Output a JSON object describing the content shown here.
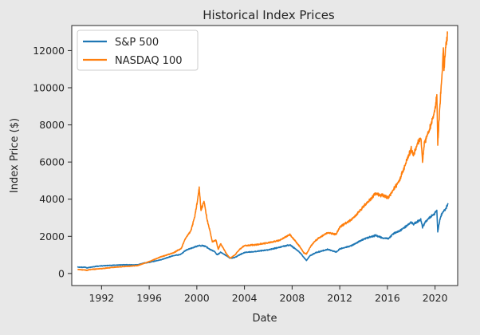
{
  "chart_data": {
    "type": "line",
    "title": "Historical Index Prices",
    "xlabel": "Date",
    "ylabel": "Index Price ($)",
    "x_ticks": [
      "1992",
      "1996",
      "2000",
      "2004",
      "2008",
      "2012",
      "2016",
      "2020"
    ],
    "y_ticks": [
      "0",
      "2000",
      "4000",
      "6000",
      "8000",
      "10000",
      "12000"
    ],
    "xlim": [
      1989.5,
      2021.9
    ],
    "ylim": [
      -650,
      13350
    ],
    "legend": {
      "position": "top-left",
      "entries": [
        "S&P 500",
        "NASDAQ 100"
      ]
    },
    "grid": false,
    "series": [
      {
        "name": "S&P 500",
        "color": "#1f77b4",
        "points": [
          [
            1990.0,
            340
          ],
          [
            1990.6,
            330
          ],
          [
            1990.8,
            300
          ],
          [
            1991.0,
            330
          ],
          [
            1991.5,
            380
          ],
          [
            1992.0,
            410
          ],
          [
            1993.0,
            440
          ],
          [
            1994.0,
            470
          ],
          [
            1995.0,
            460
          ],
          [
            1995.5,
            550
          ],
          [
            1996.0,
            600
          ],
          [
            1997.0,
            740
          ],
          [
            1998.0,
            950
          ],
          [
            1998.6,
            1020
          ],
          [
            1998.8,
            1100
          ],
          [
            1999.0,
            1230
          ],
          [
            1999.5,
            1350
          ],
          [
            2000.0,
            1460
          ],
          [
            2000.2,
            1500
          ],
          [
            2000.7,
            1480
          ],
          [
            2001.0,
            1330
          ],
          [
            2001.5,
            1180
          ],
          [
            2001.7,
            1000
          ],
          [
            2002.0,
            1140
          ],
          [
            2002.5,
            950
          ],
          [
            2002.8,
            820
          ],
          [
            2003.2,
            860
          ],
          [
            2003.5,
            980
          ],
          [
            2004.0,
            1130
          ],
          [
            2005.0,
            1190
          ],
          [
            2006.0,
            1270
          ],
          [
            2007.0,
            1420
          ],
          [
            2007.8,
            1540
          ],
          [
            2008.2,
            1360
          ],
          [
            2008.7,
            1100
          ],
          [
            2009.0,
            850
          ],
          [
            2009.2,
            700
          ],
          [
            2009.5,
            950
          ],
          [
            2010.0,
            1120
          ],
          [
            2011.0,
            1300
          ],
          [
            2011.7,
            1150
          ],
          [
            2012.0,
            1320
          ],
          [
            2013.0,
            1500
          ],
          [
            2014.0,
            1850
          ],
          [
            2015.0,
            2050
          ],
          [
            2015.6,
            1920
          ],
          [
            2016.1,
            1880
          ],
          [
            2016.5,
            2150
          ],
          [
            2017.0,
            2280
          ],
          [
            2018.0,
            2750
          ],
          [
            2018.2,
            2650
          ],
          [
            2018.8,
            2900
          ],
          [
            2018.95,
            2480
          ],
          [
            2019.2,
            2800
          ],
          [
            2019.5,
            2980
          ],
          [
            2020.0,
            3250
          ],
          [
            2020.15,
            3380
          ],
          [
            2020.23,
            2240
          ],
          [
            2020.4,
            2900
          ],
          [
            2020.6,
            3250
          ],
          [
            2020.9,
            3500
          ],
          [
            2021.1,
            3780
          ]
        ]
      },
      {
        "name": "NASDAQ 100",
        "color": "#ff7f0e",
        "points": [
          [
            1990.0,
            220
          ],
          [
            1990.8,
            170
          ],
          [
            1991.0,
            210
          ],
          [
            1992.0,
            260
          ],
          [
            1993.0,
            330
          ],
          [
            1994.0,
            380
          ],
          [
            1995.0,
            420
          ],
          [
            1996.0,
            640
          ],
          [
            1997.0,
            900
          ],
          [
            1998.0,
            1100
          ],
          [
            1998.7,
            1350
          ],
          [
            1999.0,
            1850
          ],
          [
            1999.5,
            2300
          ],
          [
            1999.8,
            3000
          ],
          [
            2000.0,
            3700
          ],
          [
            2000.2,
            4600
          ],
          [
            2000.35,
            3400
          ],
          [
            2000.6,
            3900
          ],
          [
            2000.9,
            2800
          ],
          [
            2001.1,
            2300
          ],
          [
            2001.3,
            1700
          ],
          [
            2001.6,
            1800
          ],
          [
            2001.8,
            1300
          ],
          [
            2002.0,
            1600
          ],
          [
            2002.5,
            1050
          ],
          [
            2002.8,
            820
          ],
          [
            2003.2,
            1000
          ],
          [
            2003.6,
            1300
          ],
          [
            2004.0,
            1500
          ],
          [
            2005.0,
            1550
          ],
          [
            2006.0,
            1650
          ],
          [
            2007.0,
            1800
          ],
          [
            2007.8,
            2100
          ],
          [
            2008.2,
            1800
          ],
          [
            2008.7,
            1400
          ],
          [
            2009.0,
            1100
          ],
          [
            2009.2,
            1050
          ],
          [
            2009.6,
            1500
          ],
          [
            2010.0,
            1800
          ],
          [
            2011.0,
            2200
          ],
          [
            2011.7,
            2100
          ],
          [
            2012.0,
            2500
          ],
          [
            2013.0,
            2900
          ],
          [
            2014.0,
            3600
          ],
          [
            2015.0,
            4300
          ],
          [
            2015.6,
            4200
          ],
          [
            2016.1,
            4100
          ],
          [
            2016.6,
            4600
          ],
          [
            2017.0,
            5000
          ],
          [
            2018.0,
            6700
          ],
          [
            2018.2,
            6400
          ],
          [
            2018.8,
            7400
          ],
          [
            2018.95,
            6000
          ],
          [
            2019.1,
            7000
          ],
          [
            2019.5,
            7700
          ],
          [
            2020.0,
            8800
          ],
          [
            2020.15,
            9600
          ],
          [
            2020.23,
            7000
          ],
          [
            2020.4,
            9000
          ],
          [
            2020.6,
            10800
          ],
          [
            2020.7,
            12200
          ],
          [
            2020.75,
            10900
          ],
          [
            2020.9,
            12300
          ],
          [
            2021.05,
            12900
          ]
        ]
      }
    ]
  }
}
